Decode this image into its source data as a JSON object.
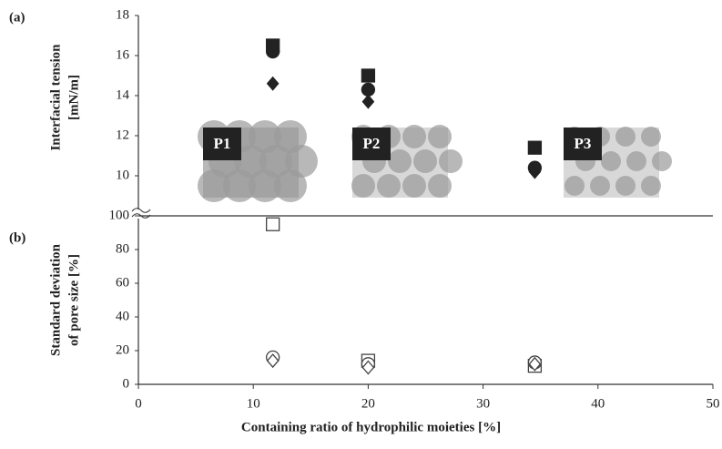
{
  "chart_data": [
    {
      "type": "scatter",
      "panel_label": "(a)",
      "ylabel": [
        "Interfacial tension",
        "[mN/m]"
      ],
      "ylim": [
        8,
        18
      ],
      "yticks": [
        10,
        12,
        14,
        16,
        18
      ],
      "x": [
        11.7,
        20,
        34.5
      ],
      "series": [
        {
          "marker": "square",
          "filled": true,
          "color": "#222222",
          "values": [
            16.5,
            15.0,
            11.4
          ]
        },
        {
          "marker": "circle",
          "filled": true,
          "color": "#222222",
          "values": [
            16.2,
            14.3,
            10.4
          ]
        },
        {
          "marker": "diamond",
          "filled": true,
          "color": "#222222",
          "values": [
            14.6,
            13.7,
            10.2
          ]
        }
      ],
      "annotations": [
        "P1",
        "P2",
        "P3"
      ]
    },
    {
      "type": "scatter",
      "panel_label": "(b)",
      "ylabel": [
        "Standard deviation",
        "of pore size [%]"
      ],
      "ylim": [
        0,
        100
      ],
      "yticks": [
        0,
        20,
        40,
        60,
        80,
        100
      ],
      "xlabel": "Containing ratio of hydrophilic moieties [%]",
      "xlim": [
        0,
        50
      ],
      "xticks": [
        0,
        10,
        20,
        30,
        40,
        50
      ],
      "x": [
        11.7,
        20,
        34.5
      ],
      "series": [
        {
          "marker": "square",
          "filled": false,
          "color": "#444444",
          "values": [
            95,
            14,
            11
          ]
        },
        {
          "marker": "circle",
          "filled": false,
          "color": "#444444",
          "values": [
            16,
            12,
            13
          ]
        },
        {
          "marker": "diamond",
          "filled": false,
          "color": "#444444",
          "values": [
            14,
            10,
            12
          ]
        }
      ]
    }
  ]
}
